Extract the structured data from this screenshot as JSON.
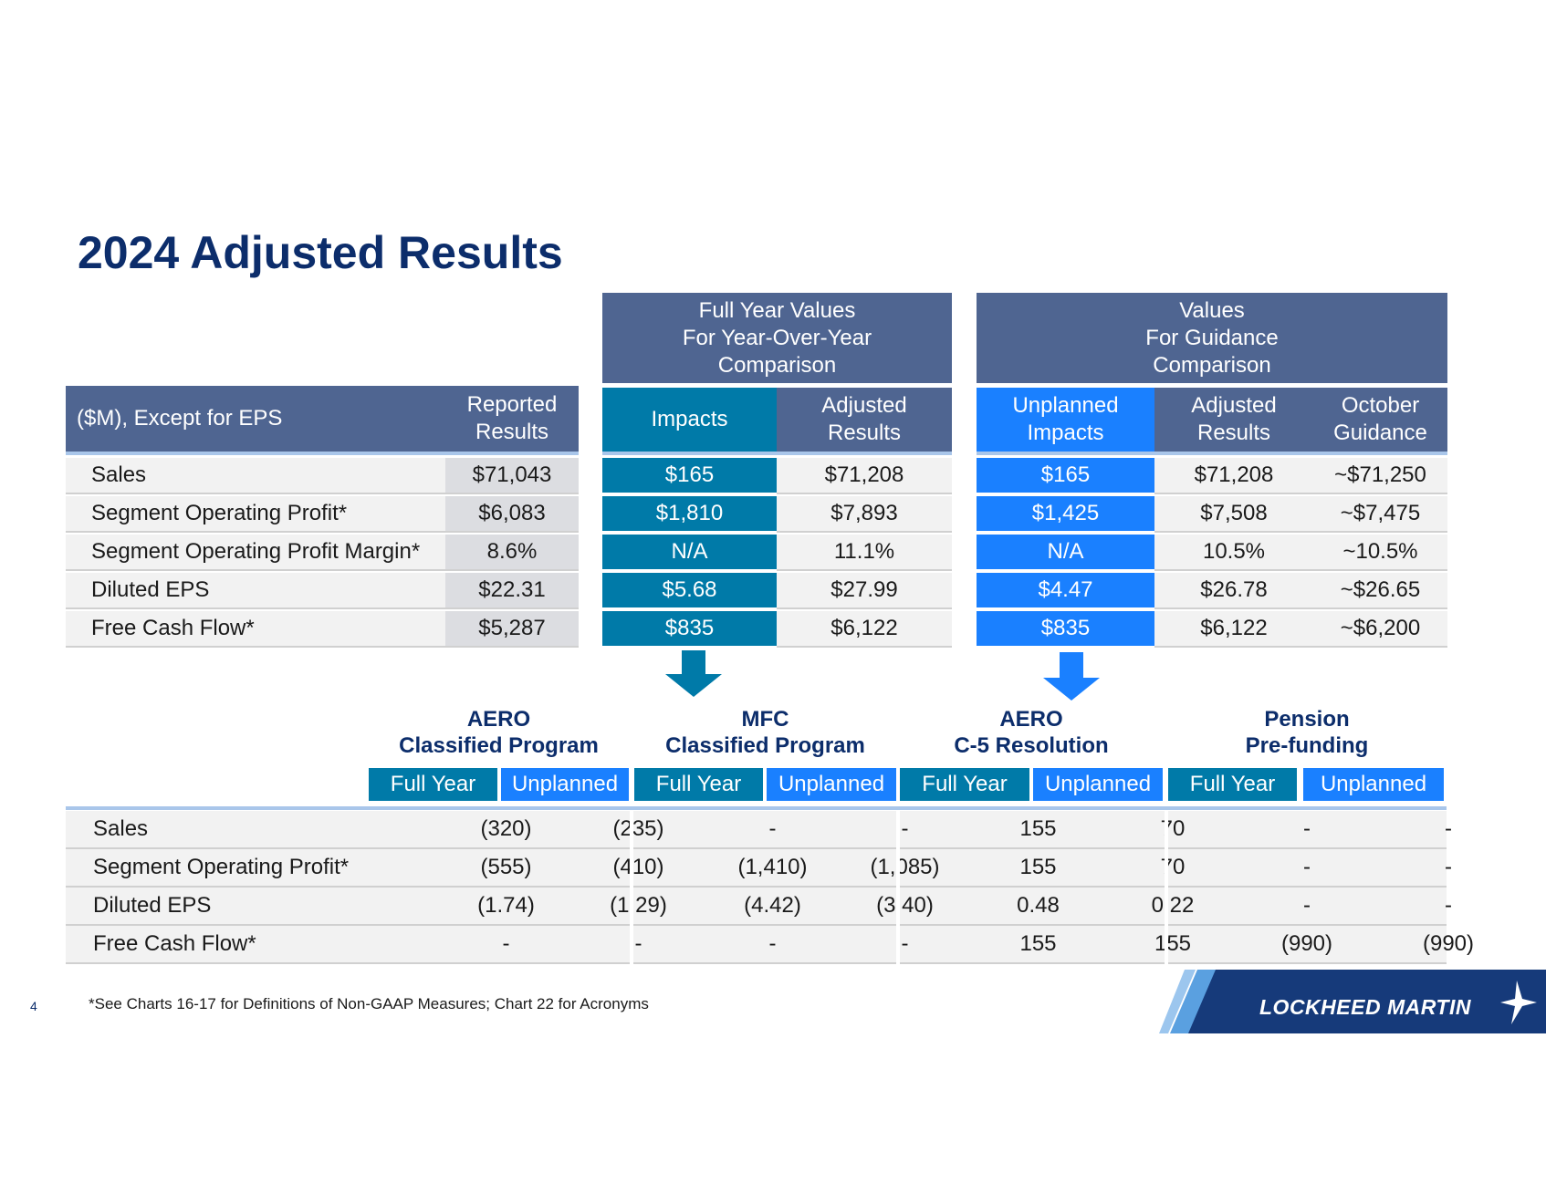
{
  "title": "2024 Adjusted Results",
  "groups": {
    "full_year": [
      "Full Year Values",
      "For Year-Over-Year",
      "Comparison"
    ],
    "guidance": [
      "Values",
      "For Guidance",
      "Comparison"
    ]
  },
  "top_table": {
    "header_label": "($M), Except for EPS",
    "headers": {
      "reported": [
        "Reported",
        "Results"
      ],
      "impacts": [
        "Impacts"
      ],
      "adjusted_fy": [
        "Adjusted",
        "Results"
      ],
      "unplanned": [
        "Unplanned",
        "Impacts"
      ],
      "adjusted_g": [
        "Adjusted",
        "Results"
      ],
      "october": [
        "October",
        "Guidance"
      ]
    },
    "rows": [
      {
        "label": "Sales",
        "reported": "$71,043",
        "impacts": "$165",
        "adjusted_fy": "$71,208",
        "unplanned": "$165",
        "adjusted_g": "$71,208",
        "october": "~$71,250"
      },
      {
        "label": "Segment Operating Profit*",
        "reported": "$6,083",
        "impacts": "$1,810",
        "adjusted_fy": "$7,893",
        "unplanned": "$1,425",
        "adjusted_g": "$7,508",
        "october": "~$7,475"
      },
      {
        "label": "Segment Operating Profit Margin*",
        "reported": "8.6%",
        "impacts": "N/A",
        "adjusted_fy": "11.1%",
        "unplanned": "N/A",
        "adjusted_g": "10.5%",
        "october": "~10.5%"
      },
      {
        "label": "Diluted EPS",
        "reported": "$22.31",
        "impacts": "$5.68",
        "adjusted_fy": "$27.99",
        "unplanned": "$4.47",
        "adjusted_g": "$26.78",
        "october": "~$26.65"
      },
      {
        "label": "Free Cash Flow*",
        "reported": "$5,287",
        "impacts": "$835",
        "adjusted_fy": "$6,122",
        "unplanned": "$835",
        "adjusted_g": "$6,122",
        "october": "~$6,200"
      }
    ]
  },
  "programs": [
    {
      "line1": "AERO",
      "line2": "Classified Program"
    },
    {
      "line1": "MFC",
      "line2": "Classified Program"
    },
    {
      "line1": "AERO",
      "line2": "C-5 Resolution"
    },
    {
      "line1": "Pension",
      "line2": "Pre-funding"
    }
  ],
  "sub_headers": {
    "full_year": "Full Year",
    "unplanned": "Unplanned"
  },
  "bottom_table": {
    "rows": [
      {
        "label": "Sales",
        "values": [
          "(320)",
          "(235)",
          "-",
          "-",
          "155",
          "70",
          "-",
          "-"
        ]
      },
      {
        "label": "Segment Operating Profit*",
        "values": [
          "(555)",
          "(410)",
          "(1,410)",
          "(1,085)",
          "155",
          "70",
          "-",
          "-"
        ]
      },
      {
        "label": "Diluted EPS",
        "values": [
          "(1.74)",
          "(1.29)",
          "(4.42)",
          "(3.40)",
          "0.48",
          "0.22",
          "-",
          "-"
        ]
      },
      {
        "label": "Free Cash Flow*",
        "values": [
          "-",
          "-",
          "-",
          "-",
          "155",
          "155",
          "(990)",
          "(990)"
        ]
      }
    ]
  },
  "footnote": "*See Charts 16-17 for Definitions of Non-GAAP Measures; Chart 22 for Acronyms",
  "page_number": "4",
  "logo_text": "LOCKHEED MARTIN",
  "colors": {
    "navy": "#0c2d6b",
    "slate": "#4f6591",
    "teal": "#007aa8",
    "blue": "#1a80ff",
    "row_bg": "#f2f2f2"
  }
}
